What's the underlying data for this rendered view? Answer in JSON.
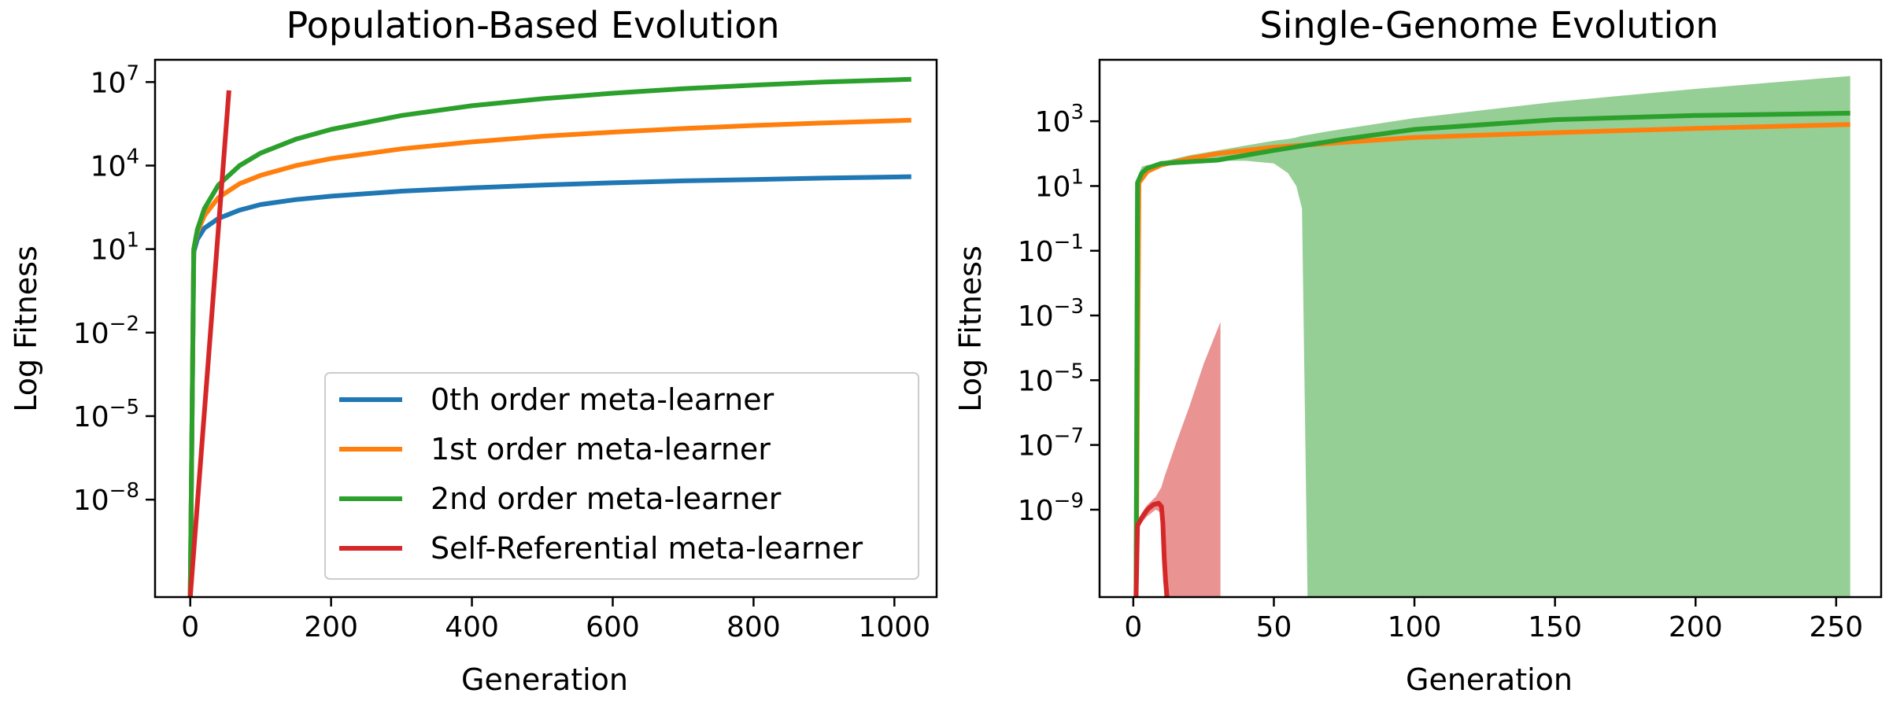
{
  "chart_data": [
    {
      "type": "line",
      "title": "Population-Based Evolution",
      "xlabel": "Generation",
      "ylabel": "Log Fitness",
      "yscale": "log",
      "xlim": [
        -50,
        1060
      ],
      "ylim_log10": [
        -11.5,
        7.8
      ],
      "xticks": [
        0,
        200,
        400,
        600,
        800,
        1000
      ],
      "yticks": [
        {
          "base": "10",
          "exp": "7",
          "log10": 7
        },
        {
          "base": "10",
          "exp": "4",
          "log10": 4
        },
        {
          "base": "10",
          "exp": "1",
          "log10": 1
        },
        {
          "base": "10",
          "exp": "−2",
          "log10": -2
        },
        {
          "base": "10",
          "exp": "−5",
          "log10": -5
        },
        {
          "base": "10",
          "exp": "−8",
          "log10": -8
        }
      ],
      "grid": false,
      "legend_position": "lower-right",
      "series": [
        {
          "name": "0th order meta-learner",
          "color": "#1f77b4",
          "x": [
            0,
            5,
            10,
            20,
            40,
            70,
            100,
            150,
            200,
            300,
            400,
            500,
            600,
            700,
            800,
            900,
            1024
          ],
          "y_log10": [
            -11.5,
            0.9,
            1.35,
            1.75,
            2.1,
            2.4,
            2.6,
            2.78,
            2.9,
            3.08,
            3.2,
            3.3,
            3.38,
            3.45,
            3.5,
            3.55,
            3.6
          ]
        },
        {
          "name": "1st order meta-learner",
          "color": "#ff7f0e",
          "x": [
            0,
            5,
            10,
            20,
            40,
            70,
            100,
            150,
            200,
            300,
            400,
            500,
            600,
            700,
            800,
            900,
            1024
          ],
          "y_log10": [
            -11.5,
            1.0,
            1.6,
            2.2,
            2.85,
            3.35,
            3.65,
            4.0,
            4.25,
            4.6,
            4.85,
            5.05,
            5.2,
            5.33,
            5.44,
            5.53,
            5.63
          ]
        },
        {
          "name": "2nd order meta-learner",
          "color": "#2ca02c",
          "x": [
            0,
            5,
            10,
            20,
            40,
            70,
            100,
            150,
            200,
            300,
            400,
            500,
            600,
            700,
            800,
            900,
            1024
          ],
          "y_log10": [
            -11.5,
            1.0,
            1.7,
            2.45,
            3.3,
            4.0,
            4.45,
            4.95,
            5.3,
            5.8,
            6.15,
            6.4,
            6.6,
            6.76,
            6.89,
            7.0,
            7.1
          ]
        },
        {
          "name": "Self-Referential meta-learner",
          "color": "#d62728",
          "x": [
            0,
            55
          ],
          "y_log10": [
            -11.5,
            6.7
          ]
        }
      ]
    },
    {
      "type": "line",
      "title": "Single-Genome Evolution",
      "xlabel": "Generation",
      "ylabel": "Log Fitness",
      "yscale": "log",
      "xlim": [
        -12,
        266
      ],
      "ylim_log10": [
        -11.7,
        4.9
      ],
      "xticks": [
        0,
        50,
        100,
        150,
        200,
        250
      ],
      "yticks": [
        {
          "base": "10",
          "exp": "3",
          "log10": 3
        },
        {
          "base": "10",
          "exp": "1",
          "log10": 1
        },
        {
          "base": "10",
          "exp": "−1",
          "log10": -1
        },
        {
          "base": "10",
          "exp": "−3",
          "log10": -3
        },
        {
          "base": "10",
          "exp": "−5",
          "log10": -5
        },
        {
          "base": "10",
          "exp": "−7",
          "log10": -7
        },
        {
          "base": "10",
          "exp": "−9",
          "log10": -9
        }
      ],
      "grid": false,
      "series": [
        {
          "name": "",
          "color": "#ff7f0e",
          "x": [
            1,
            2,
            5,
            10,
            20,
            30,
            50,
            75,
            100,
            150,
            200,
            255
          ],
          "y_log10": [
            -11.7,
            1.1,
            1.45,
            1.65,
            1.85,
            2.0,
            2.2,
            2.35,
            2.5,
            2.65,
            2.78,
            2.9
          ]
        },
        {
          "name": "",
          "color": "#2ca02c",
          "x": [
            1,
            1.5,
            3,
            5,
            10,
            20,
            30,
            50,
            75,
            100,
            150,
            200,
            255
          ],
          "y_log10": [
            -11.7,
            1.1,
            1.4,
            1.55,
            1.7,
            1.75,
            1.8,
            2.1,
            2.45,
            2.75,
            3.05,
            3.18,
            3.25
          ]
        },
        {
          "name": "",
          "color": "#d62728",
          "x": [
            1,
            1.5,
            3,
            5,
            7,
            9,
            10,
            10.5,
            11,
            11.5,
            12
          ],
          "y_log10": [
            -11.7,
            -9.5,
            -9.25,
            -9.0,
            -8.85,
            -8.8,
            -8.9,
            -9.4,
            -10.5,
            -11.2,
            -11.7
          ]
        }
      ],
      "bands": [
        {
          "color": "#2ca02c",
          "opacity": 0.5,
          "x": [
            1,
            3,
            5,
            10,
            20,
            30,
            40,
            50,
            55,
            58,
            60,
            62,
            70,
            100,
            150,
            200,
            255
          ],
          "upper_log10": [
            1.1,
            1.45,
            1.6,
            1.75,
            1.95,
            2.1,
            2.25,
            2.4,
            2.45,
            2.5,
            2.55,
            2.58,
            2.7,
            3.1,
            3.6,
            4.0,
            4.4
          ],
          "lower_log10": [
            1.1,
            1.6,
            1.65,
            1.7,
            1.75,
            1.78,
            1.78,
            1.7,
            1.4,
            1.0,
            0.3,
            -11.7,
            -11.7,
            -11.7,
            -11.7,
            -11.7,
            -11.7
          ]
        },
        {
          "color": "#d62728",
          "opacity": 0.5,
          "x": [
            1,
            3,
            5,
            8,
            10,
            11,
            13,
            15,
            20,
            25,
            31
          ],
          "upper_log10": [
            -9.5,
            -9.1,
            -8.85,
            -8.6,
            -8.3,
            -8.0,
            -7.5,
            -7.0,
            -5.8,
            -4.5,
            -3.2
          ],
          "lower_log10": [
            -9.5,
            -9.4,
            -9.2,
            -9.0,
            -9.1,
            -11.7,
            -11.7,
            -11.7,
            -11.7,
            -11.7,
            -11.7
          ]
        }
      ]
    }
  ]
}
